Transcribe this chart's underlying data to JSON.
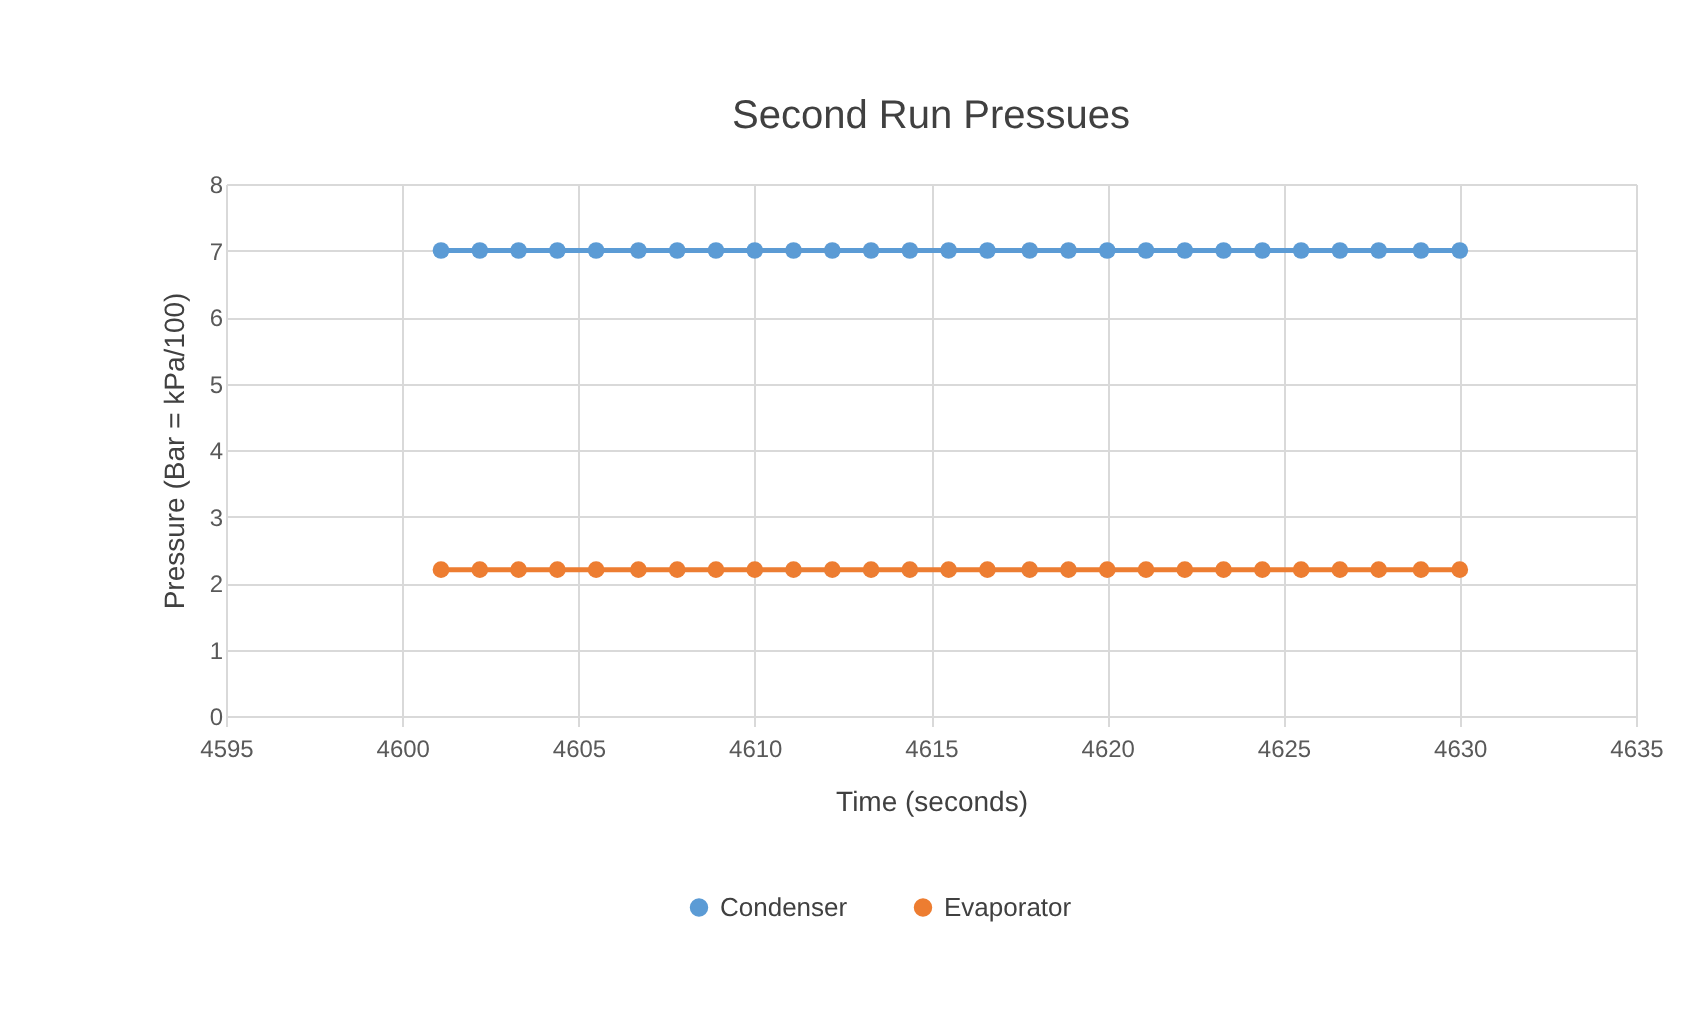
{
  "chart_data": {
    "type": "line",
    "title": "Second Run Pressues",
    "xlabel": "Time (seconds)",
    "ylabel": "Pressure (Bar = kPa/100)",
    "x": [
      4601.1,
      4602.2,
      4603.3,
      4604.4,
      4605.5,
      4606.7,
      4607.8,
      4608.9,
      4610.0,
      4611.1,
      4612.2,
      4613.3,
      4614.4,
      4615.5,
      4616.6,
      4617.8,
      4618.9,
      4620.0,
      4621.1,
      4622.2,
      4623.3,
      4624.4,
      4625.5,
      4626.6,
      4627.7,
      4628.9,
      4630.0
    ],
    "series": [
      {
        "name": "Condenser",
        "color": "#5b9bd5",
        "values": [
          7,
          7,
          7,
          7,
          7,
          7,
          7,
          7,
          7,
          7,
          7,
          7,
          7,
          7,
          7,
          7,
          7,
          7,
          7,
          7,
          7,
          7,
          7,
          7,
          7,
          7,
          7
        ]
      },
      {
        "name": "Evaporator",
        "color": "#ed7d31",
        "values": [
          2.2,
          2.2,
          2.2,
          2.2,
          2.2,
          2.2,
          2.2,
          2.2,
          2.2,
          2.2,
          2.2,
          2.2,
          2.2,
          2.2,
          2.2,
          2.2,
          2.2,
          2.2,
          2.2,
          2.2,
          2.2,
          2.2,
          2.2,
          2.2,
          2.2,
          2.2,
          2.2
        ]
      }
    ],
    "xlim": [
      4595,
      4635
    ],
    "xticks": [
      4595,
      4600,
      4605,
      4610,
      4615,
      4620,
      4625,
      4630,
      4635
    ],
    "ylim": [
      0,
      8
    ],
    "yticks": [
      0,
      1,
      2,
      3,
      4,
      5,
      6,
      7,
      8
    ],
    "grid": true,
    "legend": "bottom",
    "marker": "circle",
    "line_style": "solid"
  }
}
